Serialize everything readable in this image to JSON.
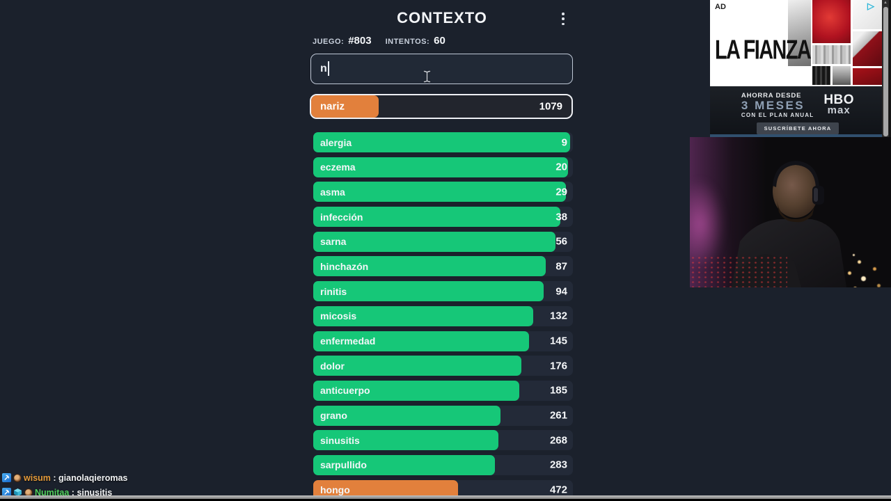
{
  "game": {
    "title": "CONTEXTO",
    "meta": {
      "game_label": "JUEGO:",
      "game_number": "#803",
      "attempts_label": "INTENTOS:",
      "attempts_value": "60"
    },
    "input": {
      "value": "n"
    },
    "last_guess": {
      "word": "nariz",
      "rank": "1079",
      "fill_pct": 26,
      "color": "orange"
    },
    "guesses": [
      {
        "word": "alergia",
        "rank": "9",
        "fill_pct": 98.8,
        "color": "green"
      },
      {
        "word": "eczema",
        "rank": "20",
        "fill_pct": 98.0,
        "color": "green"
      },
      {
        "word": "asma",
        "rank": "29",
        "fill_pct": 97.2,
        "color": "green"
      },
      {
        "word": "infección",
        "rank": "38",
        "fill_pct": 95.2,
        "color": "green"
      },
      {
        "word": "sarna",
        "rank": "56",
        "fill_pct": 93.2,
        "color": "green"
      },
      {
        "word": "hinchazón",
        "rank": "87",
        "fill_pct": 89.6,
        "color": "green"
      },
      {
        "word": "rinitis",
        "rank": "94",
        "fill_pct": 88.8,
        "color": "green"
      },
      {
        "word": "micosis",
        "rank": "132",
        "fill_pct": 84.8,
        "color": "green"
      },
      {
        "word": "enfermedad",
        "rank": "145",
        "fill_pct": 83.2,
        "color": "green"
      },
      {
        "word": "dolor",
        "rank": "176",
        "fill_pct": 80.2,
        "color": "green"
      },
      {
        "word": "anticuerpo",
        "rank": "185",
        "fill_pct": 79.4,
        "color": "green"
      },
      {
        "word": "grano",
        "rank": "261",
        "fill_pct": 72.2,
        "color": "green"
      },
      {
        "word": "sinusitis",
        "rank": "268",
        "fill_pct": 71.4,
        "color": "green"
      },
      {
        "word": "sarpullido",
        "rank": "283",
        "fill_pct": 70.0,
        "color": "green"
      },
      {
        "word": "hongo",
        "rank": "472",
        "fill_pct": 55.8,
        "color": "orange"
      }
    ],
    "colors": {
      "green": "#16c778",
      "orange": "#e2803c",
      "background": "#1b212c",
      "track": "#232a38"
    }
  },
  "ad": {
    "label": "AD",
    "headline": "LA FIANZA",
    "adchoices_icon": "▷",
    "hbo": {
      "line1": "AHORRA DESDE",
      "line2": "3 MESES",
      "line3": "CON EL PLAN ANUAL",
      "logo_top": "HBO",
      "logo_bottom": "max",
      "button_label": "SUSCRÍBETE AHORA"
    }
  },
  "chat": {
    "messages": [
      {
        "badges": [
          "pick",
          "coin"
        ],
        "username": "wisum",
        "colon": " : ",
        "message": "gianolaqieromas",
        "username_color": "#e49a3a",
        "underline": false
      },
      {
        "badges": [
          "pick",
          "cube",
          "coin"
        ],
        "username": "Numitaa",
        "colon": " : ",
        "message": "sinusitis",
        "username_color": "#52d05e",
        "underline": true
      }
    ]
  }
}
